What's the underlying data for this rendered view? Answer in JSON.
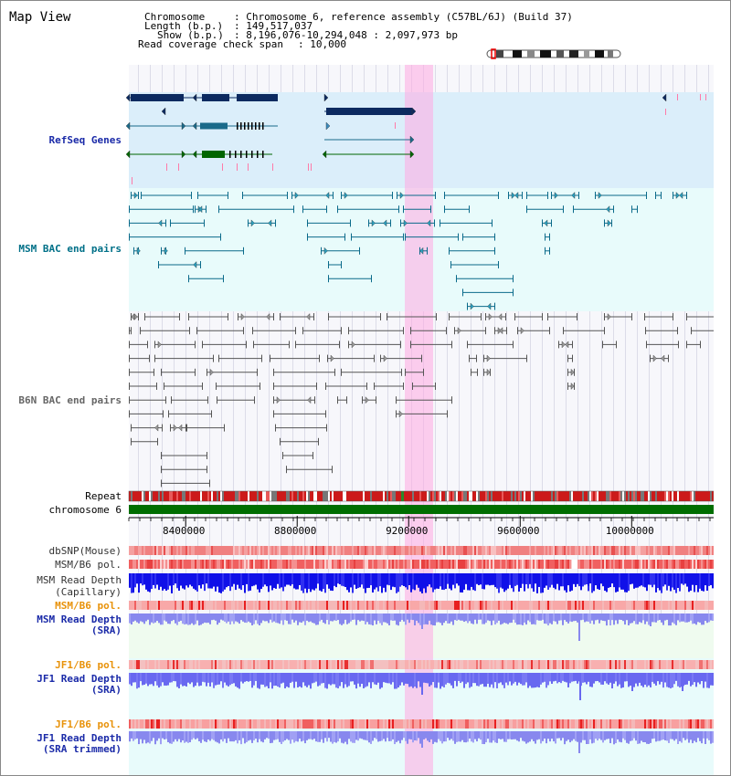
{
  "title": "Map View",
  "header": {
    "chromosome_key": "Chromosome",
    "chromosome_val": ": Chromosome 6, reference assembly (C57BL/6J) (Build 37)",
    "length_key": "Length (b.p.)",
    "length_val": ": 149,517,037",
    "show_key": "Show (b.p.)",
    "show_val": ": 8,196,076-10,294,048 : 2,097,973 bp",
    "coverage_key": "Read coverage check span",
    "coverage_val": ": 10,000"
  },
  "tracks": {
    "refseq": "RefSeq Genes",
    "msm_bac": "MSM BAC end pairs",
    "b6n_bac": "B6N BAC end pairs",
    "repeat": "Repeat",
    "chromosome": "chromosome 6",
    "dbsnp": "dbSNP(Mouse)",
    "msm_b6_pol_1": "MSM/B6 pol.",
    "msm_depth_cap_1": "MSM Read Depth",
    "msm_depth_cap_2": "(Capillary)",
    "msm_b6_pol_2": "MSM/B6 pol.",
    "msm_depth_sra_1": "MSM Read Depth",
    "msm_depth_sra_2": "(SRA)",
    "jf1_b6_pol_1": "JF1/B6 pol.",
    "jf1_depth_sra_1": "JF1 Read Depth",
    "jf1_depth_sra_2": "(SRA)",
    "jf1_b6_pol_2": "JF1/B6 pol.",
    "jf1_depth_trim_1": "JF1 Read Depth",
    "jf1_depth_trim_2": "(SRA trimmed)"
  },
  "ruler": {
    "ticks": [
      "8400000",
      "8800000",
      "9200000",
      "9600000",
      "10000000"
    ],
    "tick_values": [
      8400000,
      8800000,
      9200000,
      9600000,
      10000000
    ],
    "range": [
      8196076,
      10294048
    ]
  },
  "highlight_range": [
    9200000,
    9300000
  ],
  "colors": {
    "refseq_band": "#dbeefa",
    "msm_band": "#e8fbfb",
    "b6n_band": "#f7f7fb",
    "msm_sra_band": "#effbef",
    "jf1_band": "#e8fbfb",
    "label_blue": "#1a2aa8",
    "label_orange": "#e8920a",
    "label_teal": "#007088",
    "gene_navy": "#0c2a60",
    "gene_green": "#006600",
    "highlight": "#ffaae1"
  }
}
